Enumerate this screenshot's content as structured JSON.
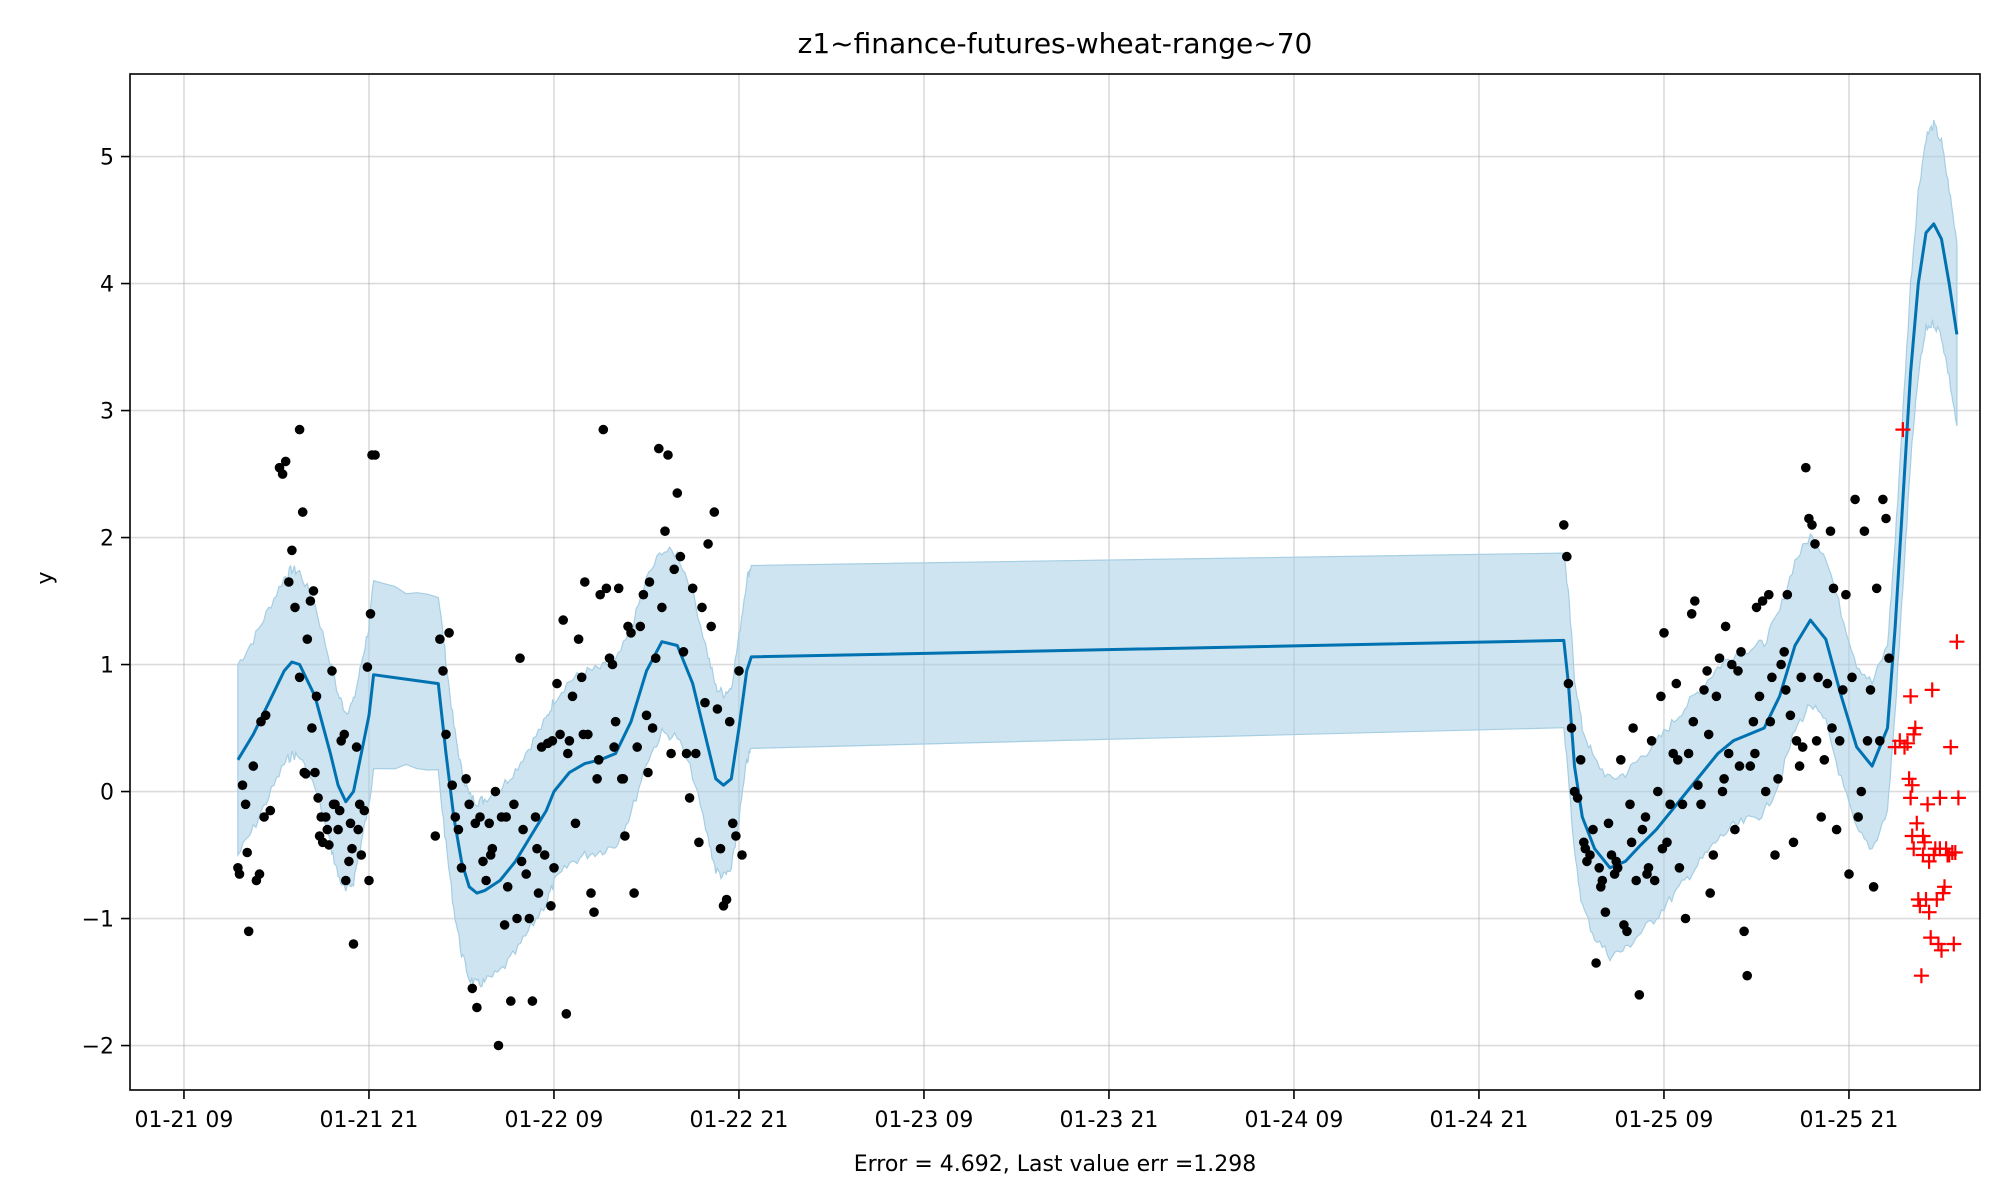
{
  "chart_data": {
    "type": "line",
    "title": "z1~finance-futures-wheat-range~70",
    "xlabel": "Error = 4.692, Last value err =1.298",
    "ylabel": "y",
    "x_ticks": [
      "01-21 09",
      "01-21 21",
      "01-22 09",
      "01-22 21",
      "01-23 09",
      "01-23 21",
      "01-24 09",
      "01-24 21",
      "01-25 09",
      "01-25 21"
    ],
    "y_ticks": [
      "−2",
      "−1",
      "0",
      "1",
      "2",
      "3",
      "4",
      "5"
    ],
    "x_unit": "hours since 01-21 09:00",
    "xlim": [
      -3.5,
      116.5
    ],
    "ylim": [
      -2.35,
      5.65
    ],
    "grid": true,
    "colors": {
      "forecast": "#0072b2",
      "band": "#a6cee3",
      "observed": "#000000",
      "test": "#ff0000"
    },
    "forecast": [
      [
        3.5,
        0.25
      ],
      [
        4.5,
        0.45
      ],
      [
        5.5,
        0.7
      ],
      [
        6.5,
        0.95
      ],
      [
        7.0,
        1.02
      ],
      [
        7.5,
        1.0
      ],
      [
        8.5,
        0.75
      ],
      [
        9.5,
        0.3
      ],
      [
        10.0,
        0.05
      ],
      [
        10.5,
        -0.08
      ],
      [
        11.0,
        0.0
      ],
      [
        11.5,
        0.3
      ],
      [
        12.0,
        0.6
      ],
      [
        12.3,
        0.92
      ],
      [
        16.5,
        0.85
      ],
      [
        17.0,
        0.3
      ],
      [
        17.5,
        -0.2
      ],
      [
        18.0,
        -0.55
      ],
      [
        18.5,
        -0.75
      ],
      [
        19.0,
        -0.8
      ],
      [
        19.5,
        -0.78
      ],
      [
        20.5,
        -0.7
      ],
      [
        21.5,
        -0.55
      ],
      [
        22.5,
        -0.35
      ],
      [
        23.5,
        -0.15
      ],
      [
        24.0,
        0.0
      ],
      [
        25.0,
        0.15
      ],
      [
        26.0,
        0.22
      ],
      [
        27.0,
        0.25
      ],
      [
        28.0,
        0.3
      ],
      [
        29.0,
        0.55
      ],
      [
        30.0,
        0.95
      ],
      [
        31.0,
        1.18
      ],
      [
        32.0,
        1.15
      ],
      [
        33.0,
        0.85
      ],
      [
        34.0,
        0.35
      ],
      [
        34.5,
        0.1
      ],
      [
        35.0,
        0.05
      ],
      [
        35.5,
        0.1
      ],
      [
        36.0,
        0.5
      ],
      [
        36.5,
        0.95
      ],
      [
        36.8,
        1.06
      ],
      [
        89.5,
        1.19
      ],
      [
        89.8,
        0.85
      ],
      [
        90.2,
        0.2
      ],
      [
        90.7,
        -0.2
      ],
      [
        91.5,
        -0.45
      ],
      [
        92.5,
        -0.6
      ],
      [
        93.5,
        -0.55
      ],
      [
        94.5,
        -0.42
      ],
      [
        95.5,
        -0.3
      ],
      [
        96.5,
        -0.15
      ],
      [
        97.5,
        0.0
      ],
      [
        98.5,
        0.15
      ],
      [
        99.5,
        0.3
      ],
      [
        100.5,
        0.4
      ],
      [
        101.5,
        0.45
      ],
      [
        102.5,
        0.5
      ],
      [
        103.5,
        0.75
      ],
      [
        104.5,
        1.15
      ],
      [
        105.5,
        1.35
      ],
      [
        106.5,
        1.2
      ],
      [
        107.5,
        0.75
      ],
      [
        108.5,
        0.35
      ],
      [
        109.5,
        0.2
      ],
      [
        110.5,
        0.5
      ],
      [
        111.0,
        1.3
      ],
      [
        111.5,
        2.3
      ],
      [
        112.0,
        3.3
      ],
      [
        112.5,
        4.0
      ],
      [
        113.0,
        4.4
      ],
      [
        113.5,
        4.47
      ],
      [
        114.0,
        4.35
      ],
      [
        114.5,
        4.0
      ],
      [
        115.0,
        3.6
      ]
    ],
    "band_width": [
      [
        3.5,
        0.75
      ],
      [
        12.0,
        0.7
      ],
      [
        12.3,
        0.72
      ],
      [
        16.5,
        0.7
      ],
      [
        17.0,
        0.72
      ],
      [
        36.8,
        0.72
      ],
      [
        89.5,
        0.7
      ],
      [
        90.2,
        0.7
      ],
      [
        110.5,
        0.65
      ],
      [
        112.0,
        0.7
      ],
      [
        113.5,
        0.78
      ],
      [
        115.0,
        0.72
      ]
    ],
    "observed": [
      [
        3.5,
        -0.6
      ],
      [
        3.6,
        -0.65
      ],
      [
        3.8,
        0.05
      ],
      [
        4.0,
        -0.1
      ],
      [
        4.1,
        -0.48
      ],
      [
        4.2,
        -1.1
      ],
      [
        4.5,
        0.2
      ],
      [
        4.7,
        -0.7
      ],
      [
        4.9,
        -0.65
      ],
      [
        5.0,
        0.55
      ],
      [
        5.3,
        0.6
      ],
      [
        5.2,
        -0.2
      ],
      [
        5.6,
        -0.15
      ],
      [
        6.2,
        2.55
      ],
      [
        6.4,
        2.5
      ],
      [
        6.6,
        2.6
      ],
      [
        6.8,
        1.65
      ],
      [
        7.0,
        1.9
      ],
      [
        7.2,
        1.45
      ],
      [
        7.5,
        2.85
      ],
      [
        7.7,
        2.2
      ],
      [
        7.5,
        0.9
      ],
      [
        7.8,
        0.15
      ],
      [
        8.0,
        1.2
      ],
      [
        8.2,
        1.5
      ],
      [
        8.4,
        1.58
      ],
      [
        8.6,
        0.75
      ],
      [
        8.3,
        0.5
      ],
      [
        8.5,
        0.15
      ],
      [
        8.7,
        -0.05
      ],
      [
        8.8,
        -0.35
      ],
      [
        9.0,
        -0.4
      ],
      [
        9.2,
        -0.2
      ],
      [
        9.4,
        -0.42
      ],
      [
        9.6,
        0.95
      ],
      [
        9.8,
        -0.1
      ],
      [
        10.0,
        -0.3
      ],
      [
        10.2,
        0.4
      ],
      [
        10.4,
        0.45
      ],
      [
        10.5,
        -0.7
      ],
      [
        10.7,
        -0.55
      ],
      [
        10.8,
        -0.25
      ],
      [
        11.0,
        -1.2
      ],
      [
        11.2,
        0.35
      ],
      [
        11.4,
        -0.1
      ],
      [
        11.5,
        -0.5
      ],
      [
        11.7,
        -0.15
      ],
      [
        11.9,
        0.98
      ],
      [
        12.1,
        1.4
      ],
      [
        12.2,
        2.65
      ],
      [
        12.4,
        2.65
      ],
      [
        12.0,
        -0.7
      ],
      [
        9.3,
        -0.3
      ],
      [
        10.1,
        -0.15
      ],
      [
        10.9,
        -0.45
      ],
      [
        11.3,
        -0.3
      ],
      [
        8.9,
        -0.2
      ],
      [
        9.7,
        -0.1
      ],
      [
        7.9,
        0.14
      ],
      [
        16.3,
        -0.35
      ],
      [
        16.6,
        1.2
      ],
      [
        16.8,
        0.95
      ],
      [
        17.0,
        0.45
      ],
      [
        17.2,
        1.25
      ],
      [
        17.4,
        0.05
      ],
      [
        17.6,
        -0.2
      ],
      [
        17.8,
        -0.3
      ],
      [
        18.0,
        -0.6
      ],
      [
        18.3,
        0.1
      ],
      [
        18.5,
        -0.1
      ],
      [
        18.7,
        -1.55
      ],
      [
        19.0,
        -1.7
      ],
      [
        19.2,
        -0.2
      ],
      [
        19.4,
        -0.55
      ],
      [
        19.6,
        -0.7
      ],
      [
        19.8,
        -0.25
      ],
      [
        20.0,
        -0.45
      ],
      [
        20.2,
        0.0
      ],
      [
        20.4,
        -2.0
      ],
      [
        20.6,
        -0.2
      ],
      [
        20.8,
        -1.05
      ],
      [
        21.0,
        -0.75
      ],
      [
        21.2,
        -1.65
      ],
      [
        21.4,
        -0.1
      ],
      [
        21.6,
        -1.0
      ],
      [
        21.8,
        1.05
      ],
      [
        22.0,
        -0.3
      ],
      [
        22.2,
        -0.65
      ],
      [
        22.4,
        -1.0
      ],
      [
        22.6,
        -1.65
      ],
      [
        22.8,
        -0.2
      ],
      [
        23.0,
        -0.8
      ],
      [
        23.2,
        0.35
      ],
      [
        23.4,
        -0.5
      ],
      [
        23.6,
        0.38
      ],
      [
        23.8,
        -0.9
      ],
      [
        24.0,
        -0.6
      ],
      [
        24.2,
        0.85
      ],
      [
        24.4,
        0.45
      ],
      [
        24.6,
        1.35
      ],
      [
        24.8,
        -1.75
      ],
      [
        25.0,
        0.4
      ],
      [
        25.2,
        0.75
      ],
      [
        25.4,
        -0.25
      ],
      [
        25.6,
        1.2
      ],
      [
        25.8,
        0.9
      ],
      [
        26.0,
        1.65
      ],
      [
        26.2,
        0.45
      ],
      [
        26.4,
        -0.8
      ],
      [
        26.6,
        -0.95
      ],
      [
        26.8,
        0.1
      ],
      [
        27.0,
        1.55
      ],
      [
        27.2,
        2.85
      ],
      [
        27.4,
        1.6
      ],
      [
        27.6,
        1.05
      ],
      [
        27.8,
        1.0
      ],
      [
        28.0,
        0.55
      ],
      [
        28.2,
        1.6
      ],
      [
        28.4,
        0.1
      ],
      [
        28.6,
        -0.35
      ],
      [
        28.8,
        1.3
      ],
      [
        29.0,
        1.25
      ],
      [
        29.2,
        -0.8
      ],
      [
        29.4,
        0.35
      ],
      [
        29.6,
        1.3
      ],
      [
        29.8,
        1.55
      ],
      [
        30.0,
        0.6
      ],
      [
        30.2,
        1.65
      ],
      [
        30.4,
        0.5
      ],
      [
        30.6,
        1.05
      ],
      [
        30.8,
        2.7
      ],
      [
        31.0,
        1.45
      ],
      [
        31.2,
        2.05
      ],
      [
        31.4,
        2.65
      ],
      [
        31.6,
        0.3
      ],
      [
        31.8,
        1.75
      ],
      [
        32.0,
        2.35
      ],
      [
        32.2,
        1.85
      ],
      [
        32.4,
        1.1
      ],
      [
        32.6,
        0.3
      ],
      [
        32.8,
        -0.05
      ],
      [
        33.0,
        1.6
      ],
      [
        33.2,
        0.3
      ],
      [
        33.4,
        -0.4
      ],
      [
        33.6,
        1.45
      ],
      [
        33.8,
        0.7
      ],
      [
        34.0,
        1.95
      ],
      [
        34.2,
        1.3
      ],
      [
        34.4,
        2.2
      ],
      [
        34.6,
        0.65
      ],
      [
        34.8,
        -0.45
      ],
      [
        35.0,
        -0.9
      ],
      [
        35.2,
        -0.85
      ],
      [
        35.4,
        0.55
      ],
      [
        35.6,
        -0.25
      ],
      [
        35.8,
        -0.35
      ],
      [
        36.0,
        0.95
      ],
      [
        36.2,
        -0.5
      ],
      [
        30.1,
        0.15
      ],
      [
        28.5,
        0.1
      ],
      [
        27.9,
        0.35
      ],
      [
        26.9,
        0.25
      ],
      [
        25.9,
        0.45
      ],
      [
        24.9,
        0.3
      ],
      [
        23.9,
        0.4
      ],
      [
        22.9,
        -0.45
      ],
      [
        21.9,
        -0.55
      ],
      [
        20.9,
        -0.2
      ],
      [
        19.9,
        -0.5
      ],
      [
        18.9,
        -0.25
      ],
      [
        89.5,
        2.1
      ],
      [
        89.7,
        1.85
      ],
      [
        89.8,
        0.85
      ],
      [
        90.0,
        0.5
      ],
      [
        90.2,
        0.0
      ],
      [
        90.4,
        -0.05
      ],
      [
        90.6,
        0.25
      ],
      [
        90.8,
        -0.4
      ],
      [
        91.0,
        -0.55
      ],
      [
        91.2,
        -0.5
      ],
      [
        91.4,
        -0.3
      ],
      [
        91.6,
        -1.35
      ],
      [
        91.8,
        -0.6
      ],
      [
        92.0,
        -0.7
      ],
      [
        92.2,
        -0.95
      ],
      [
        92.4,
        -0.25
      ],
      [
        92.6,
        -0.5
      ],
      [
        92.8,
        -0.65
      ],
      [
        93.0,
        -0.6
      ],
      [
        93.2,
        0.25
      ],
      [
        93.4,
        -1.05
      ],
      [
        93.6,
        -1.1
      ],
      [
        93.8,
        -0.1
      ],
      [
        94.0,
        0.5
      ],
      [
        94.2,
        -0.7
      ],
      [
        94.4,
        -1.6
      ],
      [
        94.6,
        -0.3
      ],
      [
        94.8,
        -0.2
      ],
      [
        95.0,
        -0.6
      ],
      [
        95.2,
        0.4
      ],
      [
        95.4,
        -0.7
      ],
      [
        95.6,
        0.0
      ],
      [
        95.8,
        0.75
      ],
      [
        96.0,
        1.25
      ],
      [
        96.2,
        -0.4
      ],
      [
        96.4,
        -0.1
      ],
      [
        96.6,
        0.3
      ],
      [
        96.8,
        0.85
      ],
      [
        97.0,
        -0.6
      ],
      [
        97.2,
        -0.1
      ],
      [
        97.4,
        -1.0
      ],
      [
        97.6,
        0.3
      ],
      [
        97.8,
        1.4
      ],
      [
        98.0,
        1.5
      ],
      [
        98.2,
        0.05
      ],
      [
        98.4,
        -0.1
      ],
      [
        98.6,
        0.8
      ],
      [
        98.8,
        0.95
      ],
      [
        99.0,
        -0.8
      ],
      [
        99.2,
        -0.5
      ],
      [
        99.4,
        0.75
      ],
      [
        99.6,
        1.05
      ],
      [
        99.8,
        0.0
      ],
      [
        100.0,
        1.3
      ],
      [
        100.2,
        0.3
      ],
      [
        100.4,
        1.0
      ],
      [
        100.6,
        -0.3
      ],
      [
        100.8,
        0.95
      ],
      [
        101.0,
        1.1
      ],
      [
        101.2,
        -1.1
      ],
      [
        101.4,
        -1.45
      ],
      [
        101.6,
        0.2
      ],
      [
        101.8,
        0.55
      ],
      [
        102.0,
        1.45
      ],
      [
        102.2,
        0.75
      ],
      [
        102.4,
        1.5
      ],
      [
        102.6,
        0.0
      ],
      [
        102.8,
        1.55
      ],
      [
        103.0,
        0.9
      ],
      [
        103.2,
        -0.5
      ],
      [
        103.4,
        0.1
      ],
      [
        103.6,
        1.0
      ],
      [
        103.8,
        1.1
      ],
      [
        104.0,
        1.55
      ],
      [
        104.2,
        0.6
      ],
      [
        104.4,
        -0.4
      ],
      [
        104.6,
        0.4
      ],
      [
        104.8,
        0.2
      ],
      [
        105.0,
        0.35
      ],
      [
        105.2,
        2.55
      ],
      [
        105.4,
        2.15
      ],
      [
        105.6,
        2.1
      ],
      [
        105.8,
        1.95
      ],
      [
        106.0,
        0.9
      ],
      [
        106.2,
        -0.2
      ],
      [
        106.4,
        0.25
      ],
      [
        106.6,
        0.85
      ],
      [
        106.8,
        2.05
      ],
      [
        107.0,
        1.6
      ],
      [
        107.2,
        -0.3
      ],
      [
        107.4,
        0.4
      ],
      [
        107.6,
        0.8
      ],
      [
        107.8,
        1.55
      ],
      [
        108.0,
        -0.65
      ],
      [
        108.2,
        0.9
      ],
      [
        108.4,
        2.3
      ],
      [
        108.6,
        -0.2
      ],
      [
        108.8,
        0.0
      ],
      [
        109.0,
        2.05
      ],
      [
        109.2,
        0.4
      ],
      [
        109.4,
        0.8
      ],
      [
        109.6,
        -0.75
      ],
      [
        109.8,
        1.6
      ],
      [
        110.0,
        0.4
      ],
      [
        110.2,
        2.3
      ],
      [
        110.4,
        2.15
      ],
      [
        110.6,
        1.05
      ],
      [
        106.9,
        0.5
      ],
      [
        105.9,
        0.4
      ],
      [
        104.9,
        0.9
      ],
      [
        103.9,
        0.8
      ],
      [
        102.9,
        0.55
      ],
      [
        101.9,
        0.3
      ],
      [
        100.9,
        0.2
      ],
      [
        99.9,
        0.1
      ],
      [
        98.9,
        0.45
      ],
      [
        97.9,
        0.55
      ],
      [
        96.9,
        0.25
      ],
      [
        95.9,
        -0.45
      ],
      [
        94.9,
        -0.65
      ],
      [
        93.9,
        -0.4
      ],
      [
        92.9,
        -0.55
      ],
      [
        91.9,
        -0.75
      ],
      [
        90.9,
        -0.45
      ]
    ],
    "test": [
      [
        111.0,
        0.35
      ],
      [
        111.3,
        0.4
      ],
      [
        111.5,
        2.85
      ],
      [
        111.6,
        0.35
      ],
      [
        111.8,
        0.38
      ],
      [
        112.0,
        0.75
      ],
      [
        112.1,
        0.05
      ],
      [
        112.2,
        0.45
      ],
      [
        112.3,
        0.5
      ],
      [
        111.9,
        0.1
      ],
      [
        112.0,
        -0.05
      ],
      [
        112.1,
        -0.35
      ],
      [
        112.2,
        -0.45
      ],
      [
        112.4,
        -0.25
      ],
      [
        112.5,
        -0.85
      ],
      [
        112.6,
        -0.9
      ],
      [
        112.7,
        -1.45
      ],
      [
        112.8,
        -0.5
      ],
      [
        112.9,
        -0.4
      ],
      [
        113.0,
        -0.85
      ],
      [
        113.1,
        -0.1
      ],
      [
        113.2,
        -0.95
      ],
      [
        113.3,
        -1.15
      ],
      [
        113.4,
        0.8
      ],
      [
        113.5,
        -0.5
      ],
      [
        113.6,
        -0.45
      ],
      [
        113.7,
        -0.85
      ],
      [
        113.8,
        -1.2
      ],
      [
        113.9,
        -0.05
      ],
      [
        114.0,
        -1.25
      ],
      [
        114.1,
        -0.8
      ],
      [
        114.2,
        -0.75
      ],
      [
        114.3,
        -0.45
      ],
      [
        114.5,
        -0.5
      ],
      [
        114.6,
        0.35
      ],
      [
        114.7,
        -0.48
      ],
      [
        114.8,
        -1.2
      ],
      [
        114.9,
        -0.48
      ],
      [
        115.0,
        1.18
      ],
      [
        115.1,
        -0.05
      ],
      [
        113.2,
        -0.55
      ],
      [
        113.9,
        -0.45
      ],
      [
        114.4,
        -0.5
      ],
      [
        112.8,
        -0.35
      ]
    ]
  }
}
